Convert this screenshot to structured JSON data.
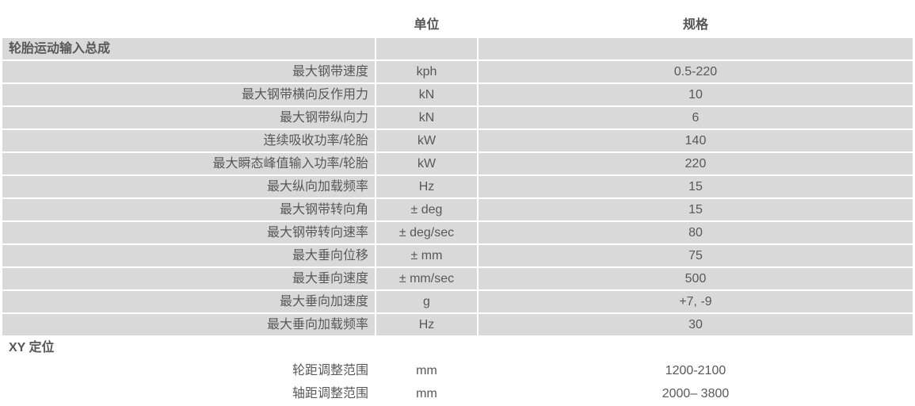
{
  "header": {
    "unit": "单位",
    "spec": "规格"
  },
  "sections": [
    {
      "title": "轮胎运动输入总成",
      "rows": [
        {
          "name": "最大钢带速度",
          "unit": "kph",
          "spec": "0.5-220"
        },
        {
          "name": "最大钢带横向反作用力",
          "unit": "kN",
          "spec": "10"
        },
        {
          "name": "最大钢带纵向力",
          "unit": "kN",
          "spec": "6"
        },
        {
          "name": "连续吸收功率/轮胎",
          "unit": "kW",
          "spec": "140"
        },
        {
          "name": "最大瞬态峰值输入功率/轮胎",
          "unit": "kW",
          "spec": "220"
        },
        {
          "name": "最大纵向加载频率",
          "unit": "Hz",
          "spec": "15"
        },
        {
          "name": "最大钢带转向角",
          "unit": "± deg",
          "spec": "15"
        },
        {
          "name": "最大钢带转向速率",
          "unit": "± deg/sec",
          "spec": "80"
        },
        {
          "name": "最大垂向位移",
          "unit": "± mm",
          "spec": "75"
        },
        {
          "name": "最大垂向速度",
          "unit": "± mm/sec",
          "spec": "500"
        },
        {
          "name": "最大垂向加速度",
          "unit": "g",
          "spec": "+7, -9"
        },
        {
          "name": "最大垂向加载频率",
          "unit": "Hz",
          "spec": "30"
        }
      ]
    },
    {
      "title": "XY 定位",
      "rows": [
        {
          "name": "轮距调整范围",
          "unit": "mm",
          "spec": "1200-2100"
        },
        {
          "name": "轴距调整范围",
          "unit": "mm",
          "spec": "2000– 3800"
        }
      ]
    }
  ]
}
